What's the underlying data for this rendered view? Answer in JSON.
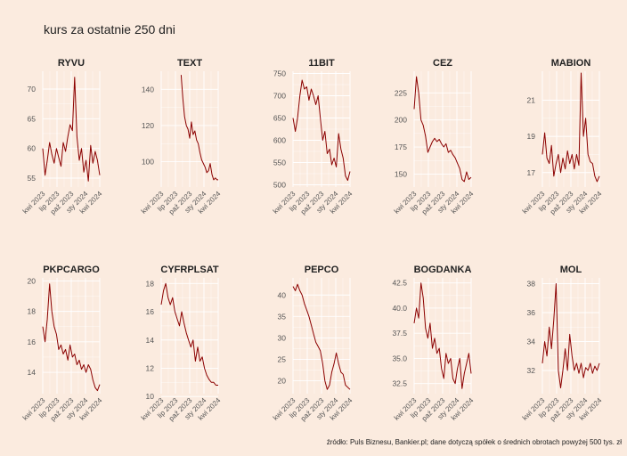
{
  "title": "kurs za ostatnie 250 dni",
  "caption": "źródło: Puls Biznesu, Bankier.pl; dane dotyczą spółek o średnich obrotach powyżej 500 tys. zł",
  "colors": {
    "background": "#fbebdf",
    "line": "#8b0000",
    "grid": "#ffffff"
  },
  "x_tick_labels": [
    "kwi 2023",
    "lip 2023",
    "paź 2023",
    "sty 2024",
    "kwi 2024"
  ],
  "chart_data": [
    {
      "type": "line",
      "title": "RYVU",
      "yticks": [
        55,
        60,
        65,
        70
      ],
      "ylim": [
        53.5,
        73
      ],
      "x": [
        0.0,
        0.04,
        0.08,
        0.12,
        0.16,
        0.2,
        0.24,
        0.28,
        0.32,
        0.36,
        0.4,
        0.44,
        0.48,
        0.52,
        0.56,
        0.6,
        0.64,
        0.68,
        0.72,
        0.76,
        0.8,
        0.84,
        0.88,
        0.92,
        0.96,
        1.0
      ],
      "values": [
        60,
        55.5,
        58,
        61,
        59,
        57.5,
        60,
        58.5,
        57,
        61,
        59.5,
        62,
        64,
        63,
        72,
        62,
        58,
        60,
        56,
        58,
        54.5,
        60.5,
        57.5,
        59.5,
        58,
        55.5
      ]
    },
    {
      "type": "line",
      "title": "TEXT",
      "yticks": [
        100,
        120,
        140
      ],
      "ylim": [
        86,
        150
      ],
      "x": [
        0.35,
        0.38,
        0.41,
        0.44,
        0.47,
        0.5,
        0.53,
        0.56,
        0.59,
        0.62,
        0.65,
        0.68,
        0.71,
        0.74,
        0.77,
        0.8,
        0.83,
        0.86,
        0.89,
        0.92,
        0.95,
        0.98,
        1.0
      ],
      "values": [
        148,
        135,
        125,
        120,
        118,
        113,
        122,
        115,
        117,
        112,
        110,
        105,
        101,
        99,
        97,
        94,
        95,
        99,
        93,
        90,
        91,
        90,
        90
      ]
    },
    {
      "type": "line",
      "title": "11BIT",
      "yticks": [
        500,
        550,
        600,
        650,
        700,
        750
      ],
      "ylim": [
        495,
        755
      ],
      "x": [
        0.0,
        0.04,
        0.08,
        0.12,
        0.16,
        0.2,
        0.24,
        0.28,
        0.32,
        0.36,
        0.4,
        0.44,
        0.48,
        0.52,
        0.56,
        0.6,
        0.64,
        0.68,
        0.72,
        0.76,
        0.8,
        0.84,
        0.88,
        0.92,
        0.96,
        1.0
      ],
      "values": [
        650,
        620,
        650,
        700,
        735,
        715,
        720,
        690,
        715,
        700,
        680,
        700,
        650,
        600,
        620,
        570,
        580,
        545,
        560,
        540,
        615,
        580,
        560,
        520,
        510,
        530
      ]
    },
    {
      "type": "line",
      "title": "CEZ",
      "yticks": [
        150,
        175,
        200,
        225
      ],
      "ylim": [
        138,
        245
      ],
      "x": [
        0.0,
        0.04,
        0.08,
        0.12,
        0.16,
        0.2,
        0.24,
        0.28,
        0.32,
        0.36,
        0.4,
        0.44,
        0.48,
        0.52,
        0.56,
        0.6,
        0.64,
        0.68,
        0.72,
        0.76,
        0.8,
        0.84,
        0.88,
        0.92,
        0.96,
        1.0
      ],
      "values": [
        210,
        240,
        225,
        200,
        195,
        185,
        170,
        175,
        180,
        183,
        180,
        182,
        178,
        175,
        178,
        170,
        172,
        168,
        165,
        160,
        155,
        145,
        143,
        152,
        145,
        147
      ]
    },
    {
      "type": "line",
      "title": "MABION",
      "yticks": [
        17,
        19,
        21
      ],
      "ylim": [
        16.2,
        22.6
      ],
      "x": [
        0.0,
        0.04,
        0.08,
        0.12,
        0.16,
        0.2,
        0.24,
        0.28,
        0.32,
        0.36,
        0.4,
        0.44,
        0.48,
        0.52,
        0.56,
        0.6,
        0.64,
        0.68,
        0.72,
        0.76,
        0.8,
        0.84,
        0.88,
        0.92,
        0.96,
        1.0
      ],
      "values": [
        18,
        19.2,
        17.8,
        17.5,
        18.5,
        16.8,
        17.5,
        18,
        17,
        17.8,
        17.2,
        18.2,
        17.5,
        18,
        17.2,
        18,
        17.4,
        22.5,
        19,
        20,
        18,
        17.6,
        17.5,
        16.8,
        16.5,
        16.8
      ]
    },
    {
      "type": "line",
      "title": "PKPCARGO",
      "yticks": [
        14,
        16,
        18,
        20
      ],
      "ylim": [
        12.6,
        20.2
      ],
      "x": [
        0.0,
        0.04,
        0.08,
        0.12,
        0.16,
        0.2,
        0.24,
        0.28,
        0.32,
        0.36,
        0.4,
        0.44,
        0.48,
        0.52,
        0.56,
        0.6,
        0.64,
        0.68,
        0.72,
        0.76,
        0.8,
        0.84,
        0.88,
        0.92,
        0.96,
        1.0
      ],
      "values": [
        17,
        16,
        17.5,
        19.8,
        18,
        17,
        16.5,
        15.5,
        15.8,
        15.2,
        15.5,
        14.8,
        15.8,
        15,
        15.2,
        14.5,
        14.8,
        14.2,
        14.5,
        14,
        14.5,
        14.2,
        13.5,
        13,
        12.8,
        13.2
      ]
    },
    {
      "type": "line",
      "title": "CYFRPLSAT",
      "yticks": [
        10,
        12,
        14,
        16,
        18
      ],
      "ylim": [
        10.2,
        18.4
      ],
      "x": [
        0.0,
        0.04,
        0.08,
        0.12,
        0.16,
        0.2,
        0.24,
        0.28,
        0.32,
        0.36,
        0.4,
        0.44,
        0.48,
        0.52,
        0.56,
        0.6,
        0.64,
        0.68,
        0.72,
        0.76,
        0.8,
        0.84,
        0.88,
        0.92,
        0.96,
        1.0
      ],
      "values": [
        16.5,
        17.5,
        18,
        17,
        16.5,
        17,
        16,
        15.5,
        15,
        16,
        15.2,
        14.5,
        14,
        13.5,
        14,
        12.5,
        13.5,
        12.5,
        12.8,
        12,
        11.5,
        11.2,
        11,
        11,
        10.8,
        10.8
      ]
    },
    {
      "type": "line",
      "title": "PEPCO",
      "yticks": [
        20,
        25,
        30,
        35,
        40
      ],
      "ylim": [
        17,
        44
      ],
      "x": [
        0.0,
        0.04,
        0.08,
        0.12,
        0.16,
        0.2,
        0.24,
        0.28,
        0.32,
        0.36,
        0.4,
        0.44,
        0.48,
        0.52,
        0.56,
        0.6,
        0.64,
        0.68,
        0.72,
        0.76,
        0.8,
        0.84,
        0.88,
        0.92,
        0.96,
        1.0
      ],
      "values": [
        42,
        41,
        42.5,
        41,
        40,
        38,
        36.5,
        35,
        33,
        31,
        29,
        28,
        27,
        24,
        20,
        18,
        19,
        22,
        24,
        26.5,
        24,
        22,
        21.5,
        19,
        18.5,
        18
      ]
    },
    {
      "type": "line",
      "title": "BOGDANKA",
      "yticks": [
        32.5,
        35.0,
        37.5,
        40.0,
        42.5
      ],
      "ylim": [
        31.5,
        43
      ],
      "x": [
        0.0,
        0.04,
        0.08,
        0.12,
        0.16,
        0.2,
        0.24,
        0.28,
        0.32,
        0.36,
        0.4,
        0.44,
        0.48,
        0.52,
        0.56,
        0.6,
        0.64,
        0.68,
        0.72,
        0.76,
        0.8,
        0.84,
        0.88,
        0.92,
        0.96,
        1.0
      ],
      "values": [
        38.5,
        40,
        39,
        42.5,
        41,
        38,
        37,
        38.5,
        36,
        37,
        35.5,
        36,
        34,
        33,
        35.5,
        34.5,
        35,
        33,
        32.5,
        34,
        35,
        32,
        33.5,
        34.5,
        35.5,
        33.5
      ]
    },
    {
      "type": "line",
      "title": "MOL",
      "yticks": [
        32,
        34,
        36,
        38
      ],
      "ylim": [
        30.4,
        38.4
      ],
      "x": [
        0.0,
        0.04,
        0.08,
        0.12,
        0.16,
        0.2,
        0.24,
        0.28,
        0.32,
        0.36,
        0.4,
        0.44,
        0.48,
        0.52,
        0.56,
        0.6,
        0.64,
        0.68,
        0.72,
        0.76,
        0.8,
        0.84,
        0.88,
        0.92,
        0.96,
        1.0
      ],
      "values": [
        32.5,
        34,
        33,
        35,
        33.5,
        35.5,
        38,
        32,
        30.8,
        32,
        33.5,
        32,
        34.5,
        33,
        32,
        32.5,
        31.8,
        32.5,
        31.5,
        32.2,
        32,
        32.5,
        31.8,
        32.3,
        32,
        32.5
      ]
    }
  ]
}
